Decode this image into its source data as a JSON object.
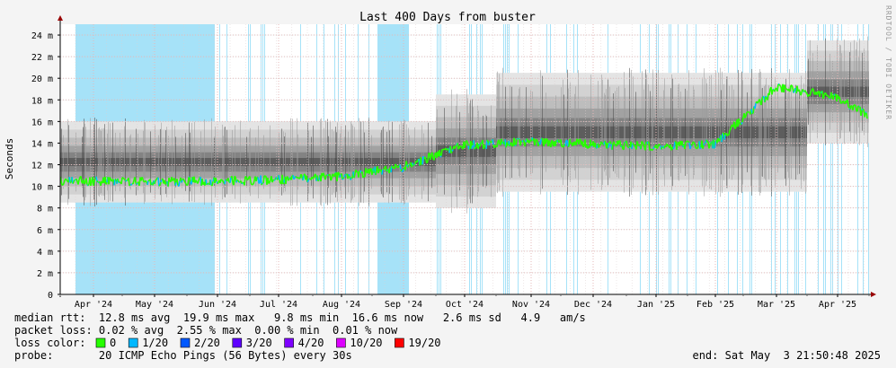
{
  "chart_data": {
    "type": "line",
    "title": "Last 400 Days from buster",
    "ylabel": "Seconds",
    "ylim": [
      0,
      0.025
    ],
    "yticks": [
      0,
      2,
      4,
      6,
      8,
      10,
      12,
      14,
      16,
      18,
      20,
      22,
      24
    ],
    "ytick_labels": [
      "0",
      "2 m",
      "4 m",
      "6 m",
      "8 m",
      "10 m",
      "12 m",
      "14 m",
      "16 m",
      "18 m",
      "20 m",
      "22 m",
      "24 m"
    ],
    "xticks": [
      "Apr '24",
      "May '24",
      "Jun '24",
      "Jul '24",
      "Aug '24",
      "Sep '24",
      "Oct '24",
      "Nov '24",
      "Dec '24",
      "Jan '25",
      "Feb '25",
      "Mar '25",
      "Apr '25"
    ],
    "grid": true,
    "watermark": "RRDTOOL / TOBI OETIKER",
    "series": [
      {
        "name": "median rtt",
        "x": [
          "Apr '24",
          "May '24",
          "Jun '24",
          "Jul '24",
          "Aug '24",
          "Sep '24",
          "Oct '24",
          "Nov '24",
          "Dec '24",
          "Jan '25",
          "Feb '25",
          "Mar '25",
          "Apr '25"
        ],
        "values_ms": [
          10.5,
          10.4,
          10.5,
          10.6,
          10.9,
          11.8,
          13.8,
          14.1,
          13.9,
          13.7,
          13.9,
          19.2,
          18.2
        ]
      }
    ],
    "bands": {
      "segments_ms": [
        {
          "from": "Mar '24",
          "to": "Sep '24",
          "min": 8.5,
          "max": 16.0
        },
        {
          "from": "Sep '24",
          "to": "Oct '24",
          "min": 8.0,
          "max": 18.5
        },
        {
          "from": "Oct '24",
          "to": "Mar '25",
          "min": 9.5,
          "max": 20.5
        },
        {
          "from": "Mar '25",
          "to": "May '25",
          "min": 14.0,
          "max": 23.5
        }
      ]
    }
  },
  "legend": {
    "median_rtt": "median rtt:  12.8 ms avg  19.9 ms max   9.8 ms min  16.6 ms now   2.6 ms sd   4.9   am/s",
    "packet_loss": "packet loss: 0.02 % avg  2.55 % max  0.00 % min  0.01 % now",
    "loss_color_label": "loss color:",
    "loss_colors": [
      {
        "label": "0",
        "color": "#26ff00"
      },
      {
        "label": "1/20",
        "color": "#00b8ff"
      },
      {
        "label": "2/20",
        "color": "#0059ff"
      },
      {
        "label": "3/20",
        "color": "#5e00ff"
      },
      {
        "label": "4/20",
        "color": "#7e00ff"
      },
      {
        "label": "10/20",
        "color": "#dd00ff"
      },
      {
        "label": "19/20",
        "color": "#ff0000"
      }
    ],
    "probe": "probe:       20 ICMP Echo Pings (56 Bytes) every 30s",
    "end": "end: Sat May  3 21:50:48 2025"
  },
  "colors": {
    "background": "#f4f4f4",
    "plot_bg": "#ffffff",
    "loss_highlight": "#a6e2f8",
    "grid": "#e6b8b8",
    "axis": "#000000",
    "arrow": "#990000"
  }
}
